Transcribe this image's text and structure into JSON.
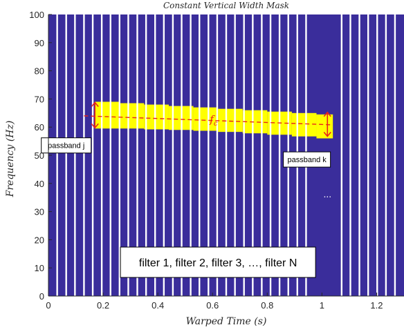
{
  "chart_data": {
    "type": "heatmap",
    "title": "Constant Vertical Width Mask",
    "xlabel": "Warped Time (s)",
    "ylabel": "Frequency (Hz)",
    "xlim": [
      0,
      1.3
    ],
    "ylim": [
      0,
      100
    ],
    "xticks": [
      "0",
      "0.2",
      "0.4",
      "0.6",
      "0.8",
      "1",
      "1.2"
    ],
    "yticks": [
      "0",
      "10",
      "20",
      "30",
      "40",
      "50",
      "60",
      "70",
      "80",
      "90",
      "100"
    ],
    "grid": false,
    "colors": {
      "mask_zero": "#3a2d9b",
      "mask_one": "#ffff00",
      "filter_boundary": "#ffffff",
      "center_line": "#e8221c",
      "arrow": "#e8221c"
    },
    "filter_boundaries_x": [
      0.032,
      0.065,
      0.097,
      0.13,
      0.162,
      0.195,
      0.227,
      0.26,
      0.292,
      0.325,
      0.357,
      0.39,
      0.422,
      0.455,
      0.487,
      0.52,
      0.552,
      0.585,
      0.617,
      0.65,
      0.682,
      0.715,
      0.747,
      0.78,
      0.812,
      0.845,
      0.877,
      0.91,
      0.942,
      1.072,
      1.104,
      1.137,
      1.169,
      1.202,
      1.234,
      1.267
    ],
    "passband": {
      "x_start": 0.17,
      "x_end": 1.04,
      "step_x": [
        0.17,
        0.26,
        0.35,
        0.44,
        0.53,
        0.62,
        0.71,
        0.8,
        0.89,
        0.98
      ],
      "upper_y": [
        69.0,
        68.5,
        68.0,
        67.5,
        67.0,
        66.5,
        66.0,
        65.5,
        65.0,
        64.5
      ],
      "lower_y": [
        59.5,
        59.5,
        59.2,
        59.0,
        58.7,
        58.3,
        57.8,
        57.3,
        56.7,
        56.0
      ]
    },
    "center_frequency": {
      "label": "f_c",
      "x": [
        0.13,
        1.04
      ],
      "y": [
        64.0,
        60.8
      ]
    },
    "arrows": [
      {
        "x": 0.17,
        "y_top": 69.0,
        "y_bottom": 59.5
      },
      {
        "x": 1.02,
        "y_top": 65.5,
        "y_bottom": 56.5
      }
    ],
    "annotations": [
      {
        "text": "passband j",
        "x": 0.065,
        "y": 53.5
      },
      {
        "text": "passband k",
        "x": 0.945,
        "y": 48.5
      },
      {
        "text": "...",
        "x": 1.02,
        "y": 35.0
      },
      {
        "text": "filter 1, filter 2, filter 3, …, filter N",
        "x": 0.62,
        "y": 12.0
      }
    ]
  }
}
